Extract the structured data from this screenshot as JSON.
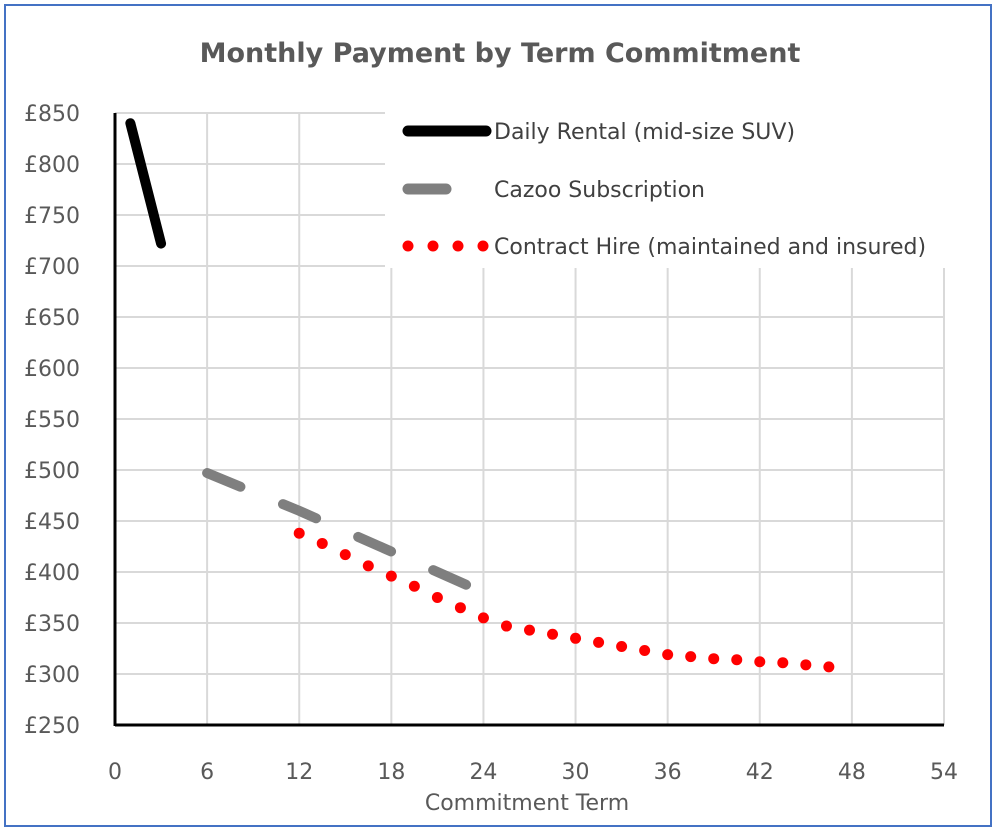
{
  "chart_data": {
    "type": "line",
    "title": "Monthly Payment by Term Commitment",
    "xlabel": "Commitment Term",
    "ylabel": "",
    "xlim": [
      0,
      54
    ],
    "ylim": [
      250,
      850
    ],
    "x_ticks": [
      0,
      6,
      12,
      18,
      24,
      30,
      36,
      42,
      48,
      54
    ],
    "y_ticks": [
      250,
      300,
      350,
      400,
      450,
      500,
      550,
      600,
      650,
      700,
      750,
      800,
      850
    ],
    "y_tick_labels": [
      "£250",
      "£300",
      "£350",
      "£400",
      "£450",
      "£500",
      "£550",
      "£600",
      "£650",
      "£700",
      "£750",
      "£800",
      "£850"
    ],
    "grid": true,
    "legend_position": "top-right",
    "series": [
      {
        "name": "Daily Rental (mid-size SUV)",
        "style": "solid",
        "color": "#000000",
        "x": [
          1,
          3
        ],
        "y": [
          840,
          722
        ]
      },
      {
        "name": "Cazoo Subscription",
        "style": "dashed",
        "color": "#7f7f7f",
        "x": [
          6,
          12,
          18,
          24
        ],
        "y": [
          497,
          460,
          420,
          380
        ]
      },
      {
        "name": "Contract Hire (maintained and insured)",
        "style": "dotted",
        "color": "#ff0000",
        "x": [
          12,
          13.5,
          15,
          16.5,
          18,
          19.5,
          21,
          22.5,
          24,
          25.5,
          27,
          28.5,
          30,
          31.5,
          33,
          34.5,
          36,
          37.5,
          39,
          40.5,
          42,
          43.5,
          45,
          46.5
        ],
        "y": [
          438,
          428,
          417,
          406,
          396,
          386,
          375,
          365,
          355,
          347,
          343,
          339,
          335,
          331,
          327,
          323,
          319,
          317,
          315,
          314,
          312,
          311,
          309,
          307
        ]
      }
    ]
  }
}
